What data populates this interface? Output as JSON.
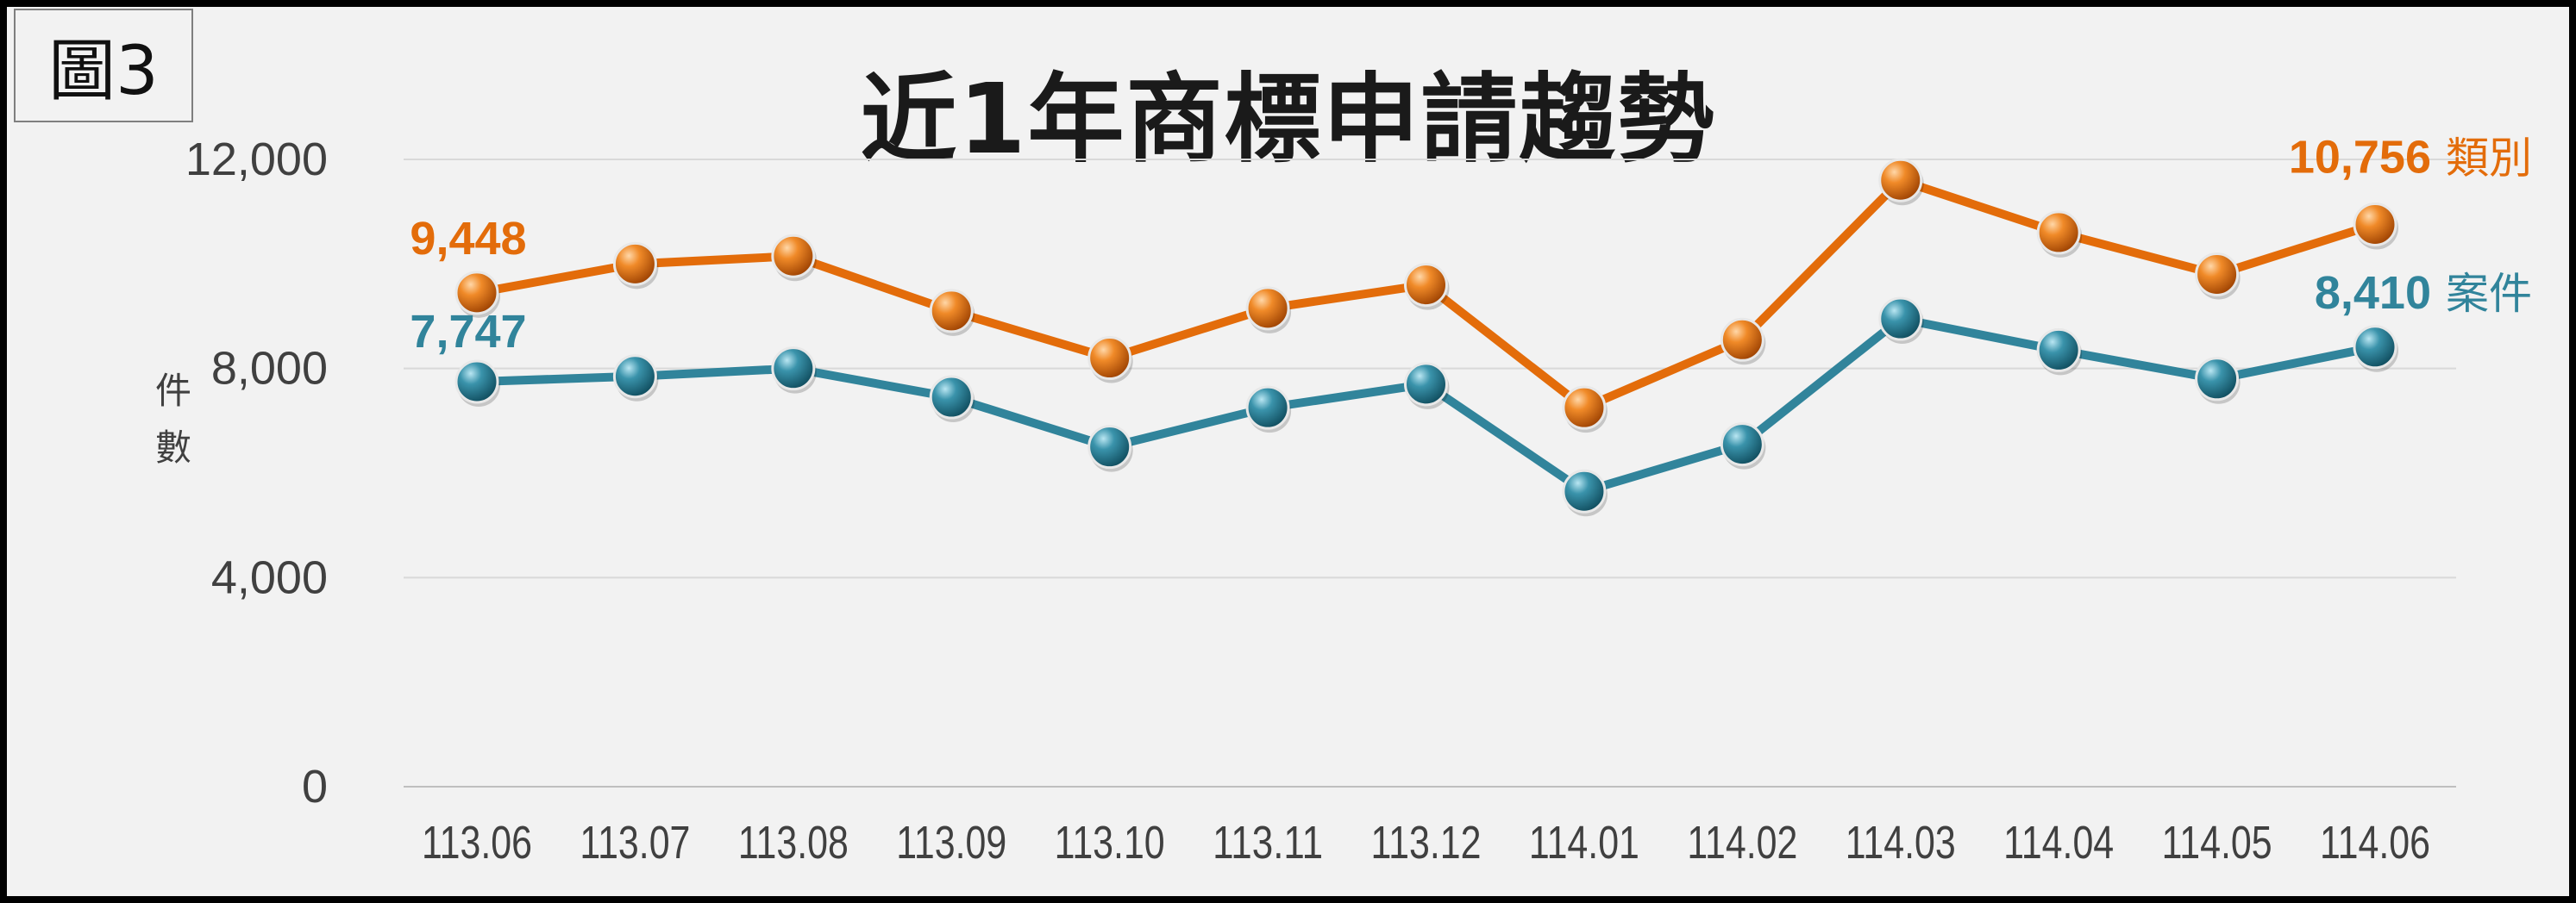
{
  "figure_label": "圖3",
  "chart_data": {
    "type": "line",
    "title": "近1年商標申請趨勢",
    "ylabel": "件數",
    "xlabel": "",
    "categories": [
      "113.06",
      "113.07",
      "113.08",
      "113.09",
      "113.10",
      "113.11",
      "113.12",
      "114.01",
      "114.02",
      "114.03",
      "114.04",
      "114.05",
      "114.06"
    ],
    "ylim": [
      0,
      12000
    ],
    "yticks": [
      0,
      4000,
      8000,
      12000
    ],
    "ytick_labels": [
      "0",
      "4,000",
      "8,000",
      "12,000"
    ],
    "grid": true,
    "series": [
      {
        "name": "類別",
        "color": "#e36c0a",
        "values": [
          9448,
          10000,
          10150,
          9100,
          8200,
          9150,
          9600,
          7250,
          8550,
          11600,
          10600,
          9800,
          10756
        ],
        "labels": [
          {
            "index": 0,
            "text": "9,448"
          },
          {
            "index": 12,
            "text": "10,756"
          }
        ]
      },
      {
        "name": "案件",
        "color": "#31849b",
        "values": [
          7747,
          7850,
          8000,
          7450,
          6500,
          7250,
          7700,
          5650,
          6550,
          8950,
          8350,
          7800,
          8410
        ],
        "labels": [
          {
            "index": 0,
            "text": "7,747"
          },
          {
            "index": 12,
            "text": "8,410"
          }
        ]
      }
    ]
  }
}
